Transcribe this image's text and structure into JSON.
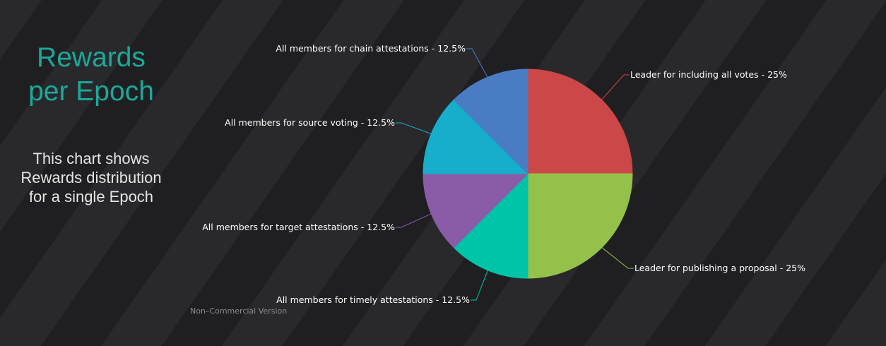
{
  "sidebar": {
    "title_line1": "Rewards",
    "title_line2": "per Epoch",
    "desc_line1": "This chart shows",
    "desc_line2": "Rewards distribution",
    "desc_line3": "for a single Epoch"
  },
  "watermark": "Non–Commercial Version",
  "chart_data": {
    "type": "pie",
    "title": "",
    "slices": [
      {
        "label": "Leader for including all votes - 25%",
        "value": 25,
        "color": "#cc4748"
      },
      {
        "label": "Leader for publishing a proposal - 25%",
        "value": 25,
        "color": "#94c149"
      },
      {
        "label": "All members for timely attestations - 12.5%",
        "value": 12.5,
        "color": "#00c4a8"
      },
      {
        "label": "All members for target attestations - 12.5%",
        "value": 12.5,
        "color": "#8a5ba6"
      },
      {
        "label": "All members for source voting - 12.5%",
        "value": 12.5,
        "color": "#16aecb"
      },
      {
        "label": "All members for chain attestations - 12.5%",
        "value": 12.5,
        "color": "#4a7cc4"
      }
    ],
    "legend": "none"
  }
}
